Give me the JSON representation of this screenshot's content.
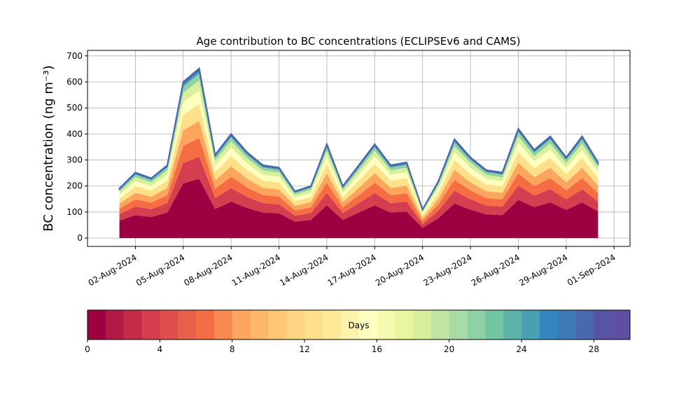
{
  "chart_data": {
    "type": "stacked_area",
    "title": "Age contribution to BC concentrations (ECLIPSEv6 and CAMS)",
    "y_label": "BC concentration (ng m⁻³)",
    "x": [
      "2024-08-01",
      "2024-08-02",
      "2024-08-03",
      "2024-08-04",
      "2024-08-05",
      "2024-08-06",
      "2024-08-07",
      "2024-08-08",
      "2024-08-09",
      "2024-08-10",
      "2024-08-11",
      "2024-08-12",
      "2024-08-13",
      "2024-08-14",
      "2024-08-15",
      "2024-08-16",
      "2024-08-17",
      "2024-08-18",
      "2024-08-19",
      "2024-08-20",
      "2024-08-21",
      "2024-08-22",
      "2024-08-23",
      "2024-08-24",
      "2024-08-25",
      "2024-08-26",
      "2024-08-27",
      "2024-08-28",
      "2024-08-29",
      "2024-08-30",
      "2024-08-31"
    ],
    "series": [
      {
        "color": "#9e0142",
        "values": [
          67,
          88,
          81,
          98,
          210,
          228,
          112,
          140,
          116,
          98,
          95,
          63,
          70,
          126,
          70,
          98,
          126,
          98,
          102,
          39,
          77,
          133,
          109,
          91,
          88,
          147,
          119,
          137,
          109,
          137,
          102
        ]
      },
      {
        "color": "#d53e4f",
        "values": [
          25,
          33,
          30,
          36,
          78,
          85,
          42,
          52,
          43,
          36,
          35,
          23,
          26,
          47,
          26,
          36,
          47,
          36,
          38,
          14,
          29,
          49,
          40,
          34,
          33,
          55,
          44,
          51,
          40,
          51,
          38
        ]
      },
      {
        "color": "#f46d43",
        "values": [
          21,
          28,
          25,
          31,
          66,
          72,
          35,
          44,
          36,
          31,
          30,
          20,
          22,
          40,
          22,
          31,
          40,
          31,
          32,
          12,
          24,
          42,
          34,
          29,
          28,
          46,
          37,
          43,
          34,
          43,
          32
        ]
      },
      {
        "color": "#fca55d",
        "values": [
          19,
          25,
          23,
          28,
          60,
          65,
          32,
          40,
          33,
          28,
          27,
          18,
          20,
          36,
          20,
          28,
          36,
          28,
          29,
          11,
          22,
          38,
          31,
          26,
          25,
          42,
          34,
          39,
          31,
          39,
          29
        ]
      },
      {
        "color": "#fee08b",
        "values": [
          19,
          25,
          23,
          28,
          60,
          65,
          32,
          40,
          33,
          28,
          27,
          18,
          20,
          36,
          20,
          28,
          36,
          28,
          29,
          11,
          22,
          38,
          31,
          26,
          25,
          42,
          34,
          39,
          31,
          39,
          29
        ]
      },
      {
        "color": "#ffffbf",
        "values": [
          15,
          20,
          18,
          22,
          48,
          52,
          26,
          32,
          26,
          22,
          22,
          14,
          16,
          29,
          16,
          22,
          29,
          22,
          23,
          9,
          18,
          30,
          25,
          21,
          20,
          34,
          27,
          31,
          25,
          31,
          23
        ]
      },
      {
        "color": "#d8ef9b",
        "values": [
          11,
          15,
          14,
          17,
          36,
          39,
          19,
          24,
          20,
          17,
          16,
          11,
          12,
          22,
          12,
          17,
          22,
          17,
          17,
          7,
          13,
          23,
          19,
          16,
          15,
          25,
          20,
          23,
          19,
          23,
          17
        ]
      },
      {
        "color": "#8ed1a4",
        "values": [
          8,
          10,
          9,
          11,
          24,
          26,
          13,
          16,
          13,
          11,
          11,
          7,
          8,
          14,
          8,
          11,
          14,
          11,
          12,
          4,
          9,
          15,
          12,
          10,
          10,
          17,
          14,
          16,
          12,
          16,
          12
        ]
      },
      {
        "color": "#47a0b3",
        "values": [
          4,
          5,
          5,
          6,
          12,
          13,
          6,
          8,
          7,
          6,
          5,
          4,
          4,
          7,
          4,
          6,
          7,
          6,
          6,
          2,
          4,
          8,
          6,
          5,
          5,
          8,
          7,
          8,
          6,
          8,
          6
        ]
      },
      {
        "color": "#4a68ae",
        "values": [
          2,
          3,
          2,
          3,
          6,
          7,
          3,
          4,
          3,
          3,
          3,
          2,
          2,
          4,
          2,
          3,
          4,
          3,
          3,
          1,
          2,
          4,
          3,
          3,
          3,
          4,
          3,
          4,
          3,
          4,
          3
        ]
      }
    ],
    "xlim": [
      "2024-07-30",
      "2024-09-02"
    ],
    "xticks": [
      {
        "value": "2024-08-02",
        "label": "02-Aug-2024"
      },
      {
        "value": "2024-08-05",
        "label": "05-Aug-2024"
      },
      {
        "value": "2024-08-08",
        "label": "08-Aug-2024"
      },
      {
        "value": "2024-08-11",
        "label": "11-Aug-2024"
      },
      {
        "value": "2024-08-14",
        "label": "14-Aug-2024"
      },
      {
        "value": "2024-08-17",
        "label": "17-Aug-2024"
      },
      {
        "value": "2024-08-20",
        "label": "20-Aug-2024"
      },
      {
        "value": "2024-08-23",
        "label": "23-Aug-2024"
      },
      {
        "value": "2024-08-26",
        "label": "26-Aug-2024"
      },
      {
        "value": "2024-08-29",
        "label": "29-Aug-2024"
      },
      {
        "value": "2024-09-01",
        "label": "01-Sep-2024"
      }
    ],
    "ylim": [
      -32,
      721
    ],
    "yticks": [
      0,
      100,
      200,
      300,
      400,
      500,
      600,
      700
    ],
    "grid": true,
    "colorbar": {
      "label": "Days",
      "lim": [
        0,
        30
      ],
      "ticks": [
        0,
        4,
        8,
        12,
        16,
        20,
        24,
        28
      ],
      "colors": [
        "#9e0142",
        "#b11a44",
        "#c52a47",
        "#d53e4f",
        "#df4e4b",
        "#e9604a",
        "#f46d43",
        "#f88950",
        "#fca55d",
        "#fdb768",
        "#fdc776",
        "#fed683",
        "#fee08b",
        "#fee999",
        "#fff2aa",
        "#ffffbf",
        "#f4faae",
        "#e9f69d",
        "#d8ef9b",
        "#c0e5a0",
        "#a8dca4",
        "#8ed1a4",
        "#73c6a4",
        "#5cb4a9",
        "#47a0b3",
        "#3288bd",
        "#3d7ab7",
        "#4a68ae",
        "#5854a5",
        "#5e4fa2"
      ]
    }
  }
}
